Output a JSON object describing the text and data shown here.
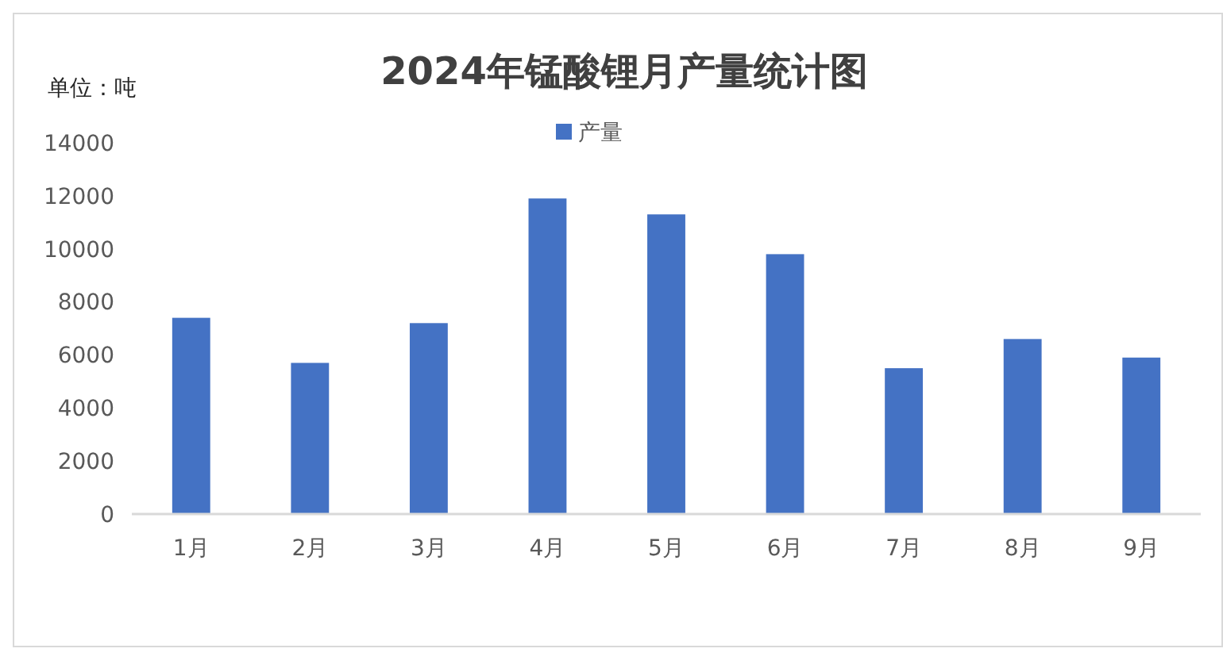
{
  "chart_data": {
    "type": "bar",
    "title": "2024年锰酸锂月产量统计图",
    "ylabel": "单位：吨",
    "categories": [
      "1月",
      "2月",
      "3月",
      "4月",
      "5月",
      "6月",
      "7月",
      "8月",
      "9月"
    ],
    "series": [
      {
        "name": "产量",
        "color": "#4472c4",
        "values": [
          7400,
          5700,
          7200,
          11900,
          11300,
          9800,
          5500,
          6600,
          5900
        ]
      }
    ],
    "ylim": [
      0,
      14000
    ],
    "yticks": [
      0,
      2000,
      4000,
      6000,
      8000,
      10000,
      12000,
      14000
    ],
    "grid": false,
    "legend": "top"
  }
}
